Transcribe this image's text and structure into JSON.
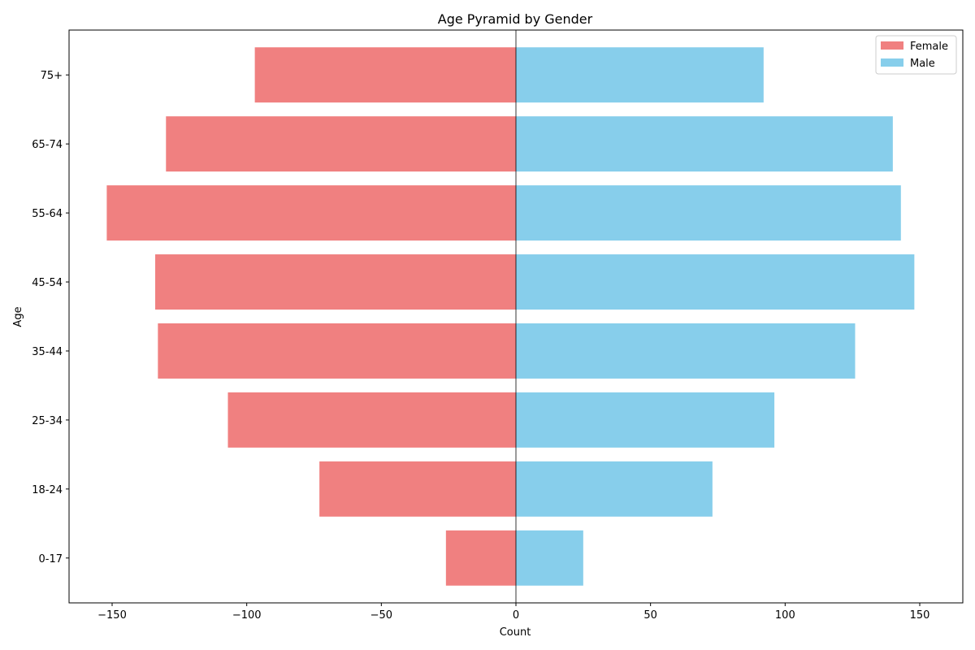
{
  "chart_data": {
    "type": "bar",
    "orientation": "horizontal",
    "title": "Age Pyramid by Gender",
    "xlabel": "Count",
    "ylabel": "Age",
    "xlim": [
      -166,
      166
    ],
    "xticks": [
      -150,
      -100,
      -50,
      0,
      50,
      100,
      150
    ],
    "xtick_labels": [
      "−150",
      "−100",
      "−50",
      "0",
      "50",
      "100",
      "150"
    ],
    "categories": [
      "0-17",
      "18-24",
      "25-34",
      "35-44",
      "45-54",
      "55-64",
      "65-74",
      "75+"
    ],
    "series": [
      {
        "name": "Female",
        "color": "#f08080",
        "values": [
          -26,
          -73,
          -107,
          -133,
          -134,
          -152,
          -130,
          -97
        ]
      },
      {
        "name": "Male",
        "color": "#87ceeb",
        "values": [
          25,
          73,
          96,
          126,
          148,
          143,
          140,
          92
        ]
      }
    ],
    "legend_position": "top-right",
    "grid": false,
    "zero_line": true
  }
}
